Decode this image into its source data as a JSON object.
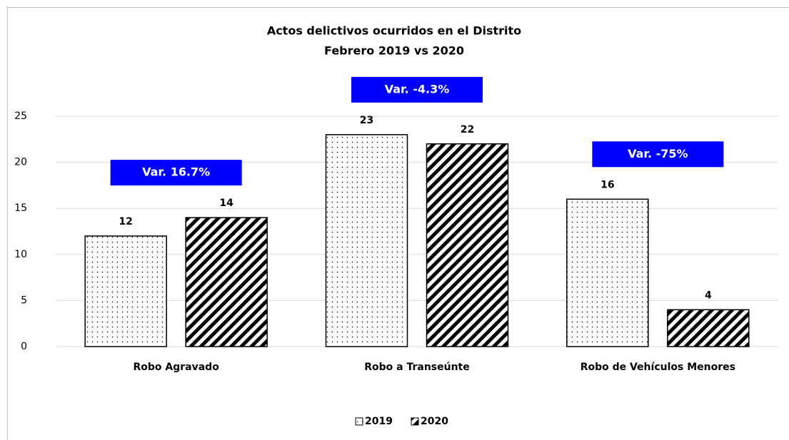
{
  "chart_data": {
    "type": "bar",
    "title": "Actos delictivos ocurridos en el Distrito",
    "subtitle": "Febrero 2019 vs 2020",
    "categories": [
      "Robo Agravado",
      "Robo a Transeúnte",
      "Robo de Vehículos Menores"
    ],
    "series": [
      {
        "name": "2019",
        "color": "#000000",
        "pattern": "dots",
        "values": [
          12,
          23,
          16
        ]
      },
      {
        "name": "2020",
        "color": "#000000",
        "pattern": "stripes",
        "values": [
          14,
          22,
          4
        ]
      }
    ],
    "annotations": [
      "Var. 16.7%",
      "Var. -4.3%",
      "Var. -75%"
    ],
    "annotation_color": "#0000ff",
    "ylim": [
      0,
      25
    ],
    "yticks": [
      0,
      5,
      10,
      15,
      20,
      25
    ],
    "grid": true,
    "legend": "bottom"
  }
}
